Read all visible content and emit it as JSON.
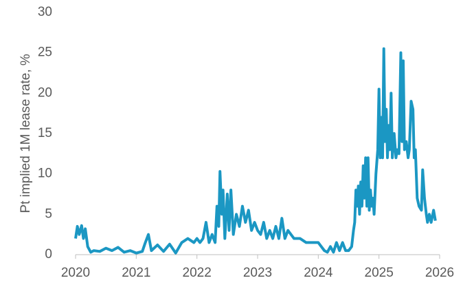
{
  "chart_data": {
    "type": "line",
    "y_label": "Pt implied 1M lease rate, %",
    "x": [
      2020.0,
      2020.03,
      2020.06,
      2020.1,
      2020.13,
      2020.16,
      2020.2,
      2020.25,
      2020.3,
      2020.4,
      2020.5,
      2020.6,
      2020.7,
      2020.8,
      2020.9,
      2021.0,
      2021.1,
      2021.15,
      2021.2,
      2021.25,
      2021.35,
      2021.45,
      2021.55,
      2021.65,
      2021.75,
      2021.85,
      2021.95,
      2022.0,
      2022.05,
      2022.1,
      2022.15,
      2022.2,
      2022.25,
      2022.3,
      2022.33,
      2022.36,
      2022.38,
      2022.41,
      2022.43,
      2022.46,
      2022.5,
      2022.53,
      2022.56,
      2022.6,
      2022.65,
      2022.7,
      2022.75,
      2022.8,
      2022.85,
      2022.9,
      2022.95,
      2023.0,
      2023.05,
      2023.1,
      2023.15,
      2023.2,
      2023.25,
      2023.3,
      2023.35,
      2023.4,
      2023.45,
      2023.5,
      2023.55,
      2023.6,
      2023.7,
      2023.8,
      2023.9,
      2024.0,
      2024.05,
      2024.1,
      2024.15,
      2024.2,
      2024.25,
      2024.3,
      2024.35,
      2024.4,
      2024.45,
      2024.5,
      2024.55,
      2024.58,
      2024.6,
      2024.62,
      2024.64,
      2024.66,
      2024.68,
      2024.7,
      2024.72,
      2024.74,
      2024.76,
      2024.78,
      2024.8,
      2024.82,
      2024.84,
      2024.86,
      2024.88,
      2024.9,
      2024.92,
      2024.95,
      2024.98,
      2025.0,
      2025.02,
      2025.04,
      2025.06,
      2025.08,
      2025.1,
      2025.12,
      2025.14,
      2025.16,
      2025.18,
      2025.2,
      2025.22,
      2025.25,
      2025.28,
      2025.3,
      2025.33,
      2025.36,
      2025.38,
      2025.4,
      2025.42,
      2025.45,
      2025.48,
      2025.5,
      2025.53,
      2025.56,
      2025.58,
      2025.6,
      2025.63,
      2025.66,
      2025.7,
      2025.72,
      2025.75,
      2025.78,
      2025.8,
      2025.83,
      2025.86,
      2025.9,
      2025.93
    ],
    "series": [
      {
        "name": "Pt implied 1M lease rate",
        "color": "#1b97c3",
        "values": [
          2,
          3.5,
          2.5,
          3.6,
          2,
          3.2,
          1,
          0.3,
          0.5,
          0.4,
          0.8,
          0.5,
          0.9,
          0.3,
          0.5,
          0.2,
          0.4,
          1.5,
          2.5,
          0.5,
          1.2,
          0.4,
          1.3,
          0.2,
          1.5,
          2,
          1.5,
          2,
          1.5,
          2,
          4,
          1.5,
          2.5,
          1.5,
          6,
          3.5,
          10.3,
          5,
          8,
          2,
          7.5,
          3,
          8,
          2.5,
          5,
          3.5,
          6,
          4,
          5.5,
          3,
          4,
          3,
          2.5,
          4,
          2,
          3,
          2,
          3.5,
          2,
          4.5,
          2,
          3,
          2.5,
          2,
          2,
          1.5,
          1.5,
          1.5,
          1,
          0.5,
          0.3,
          1,
          0.3,
          1.5,
          0.5,
          1.5,
          0.5,
          0.5,
          1,
          3,
          4,
          8,
          6,
          8.5,
          5,
          9,
          6,
          11,
          7,
          12,
          6,
          12,
          5.5,
          8,
          6,
          7,
          5,
          10,
          13,
          20.5,
          12,
          17,
          12,
          25.5,
          14,
          18,
          12,
          16,
          13,
          20,
          12,
          15,
          12,
          13,
          12.5,
          25,
          14,
          24,
          13,
          14,
          12,
          13,
          19,
          18,
          12,
          13,
          7,
          6,
          5.5,
          10.5,
          7,
          5,
          4,
          5,
          4,
          5.5,
          4.2
        ]
      }
    ],
    "xlim": [
      2020,
      2026
    ],
    "xticks": [
      2020,
      2021,
      2022,
      2023,
      2024,
      2025,
      2026
    ],
    "ylim": [
      0,
      30
    ],
    "yticks": [
      0,
      5,
      10,
      15,
      20,
      25,
      30
    ]
  }
}
